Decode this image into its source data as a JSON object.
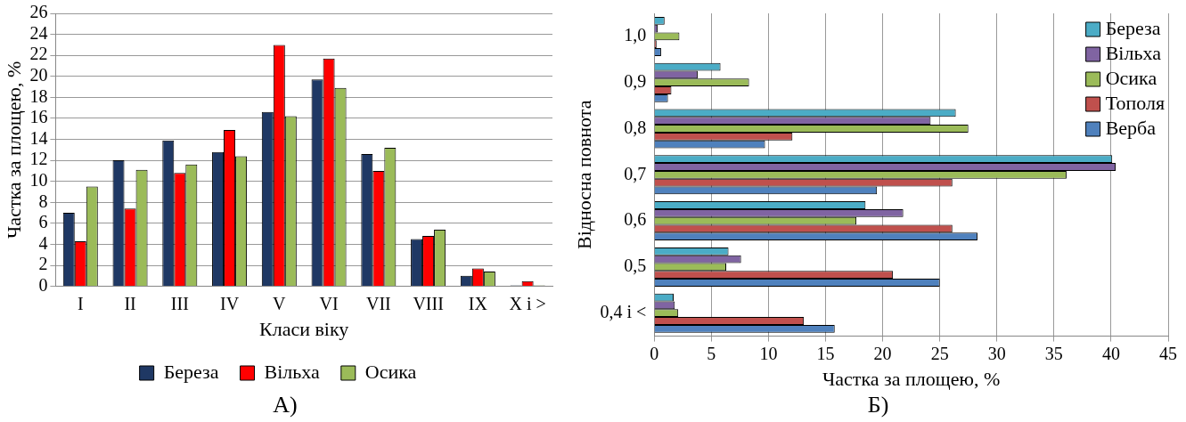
{
  "chart_data": [
    {
      "type": "bar",
      "xlabel": "Класи віку",
      "ylabel": "Частка за площею, %",
      "categories": [
        "I",
        "II",
        "III",
        "IV",
        "V",
        "VI",
        "VII",
        "VIII",
        "IX",
        "X і >"
      ],
      "series": [
        {
          "name": "Береза",
          "color": "#1f3864",
          "values": [
            7.0,
            12.0,
            13.9,
            12.8,
            16.6,
            19.7,
            12.6,
            4.5,
            1.0,
            0.1
          ]
        },
        {
          "name": "Вільха",
          "color": "#ff0000",
          "values": [
            4.3,
            7.4,
            10.8,
            14.9,
            23.0,
            21.7,
            11.0,
            4.8,
            1.7,
            0.5
          ]
        },
        {
          "name": "Осика",
          "color": "#9bbb59",
          "values": [
            9.5,
            11.1,
            11.6,
            12.4,
            16.2,
            18.9,
            13.2,
            5.4,
            1.4,
            0.1
          ]
        }
      ],
      "ylim": [
        0,
        26
      ],
      "yticks": [
        0,
        2,
        4,
        6,
        8,
        10,
        12,
        14,
        16,
        18,
        20,
        22,
        24,
        26
      ],
      "grid": "y",
      "legend": "bottom",
      "annotations": [
        "А)"
      ]
    },
    {
      "type": "bar",
      "orientation": "horizontal",
      "xlabel": "Частка за площею, %",
      "ylabel": "Відносна повнота",
      "categories": [
        "1,0",
        "0,9",
        "0,8",
        "0,7",
        "0,6",
        "0,5",
        "0,4 і <"
      ],
      "series": [
        {
          "name": "Береза",
          "color": "#4bacc6",
          "values": [
            0.9,
            5.8,
            26.4,
            40.1,
            18.5,
            6.5,
            1.7
          ]
        },
        {
          "name": "Вільха",
          "color": "#8064a2",
          "values": [
            0.3,
            3.8,
            24.2,
            40.4,
            21.8,
            7.6,
            1.8
          ]
        },
        {
          "name": "Осика",
          "color": "#9bbb59",
          "values": [
            2.2,
            8.3,
            27.5,
            36.1,
            17.7,
            6.3,
            2.1
          ]
        },
        {
          "name": "Тополя",
          "color": "#c0504d",
          "values": [
            0.2,
            1.5,
            12.1,
            26.1,
            26.1,
            20.9,
            13.1
          ]
        },
        {
          "name": "Верба",
          "color": "#4f81bd",
          "values": [
            0.6,
            1.2,
            9.7,
            19.5,
            28.3,
            25.0,
            15.8
          ]
        }
      ],
      "xlim": [
        0,
        45
      ],
      "xticks": [
        0,
        5,
        10,
        15,
        20,
        25,
        30,
        35,
        40,
        45
      ],
      "grid": "x",
      "legend": "top right",
      "annotations": [
        "Б)"
      ]
    }
  ]
}
